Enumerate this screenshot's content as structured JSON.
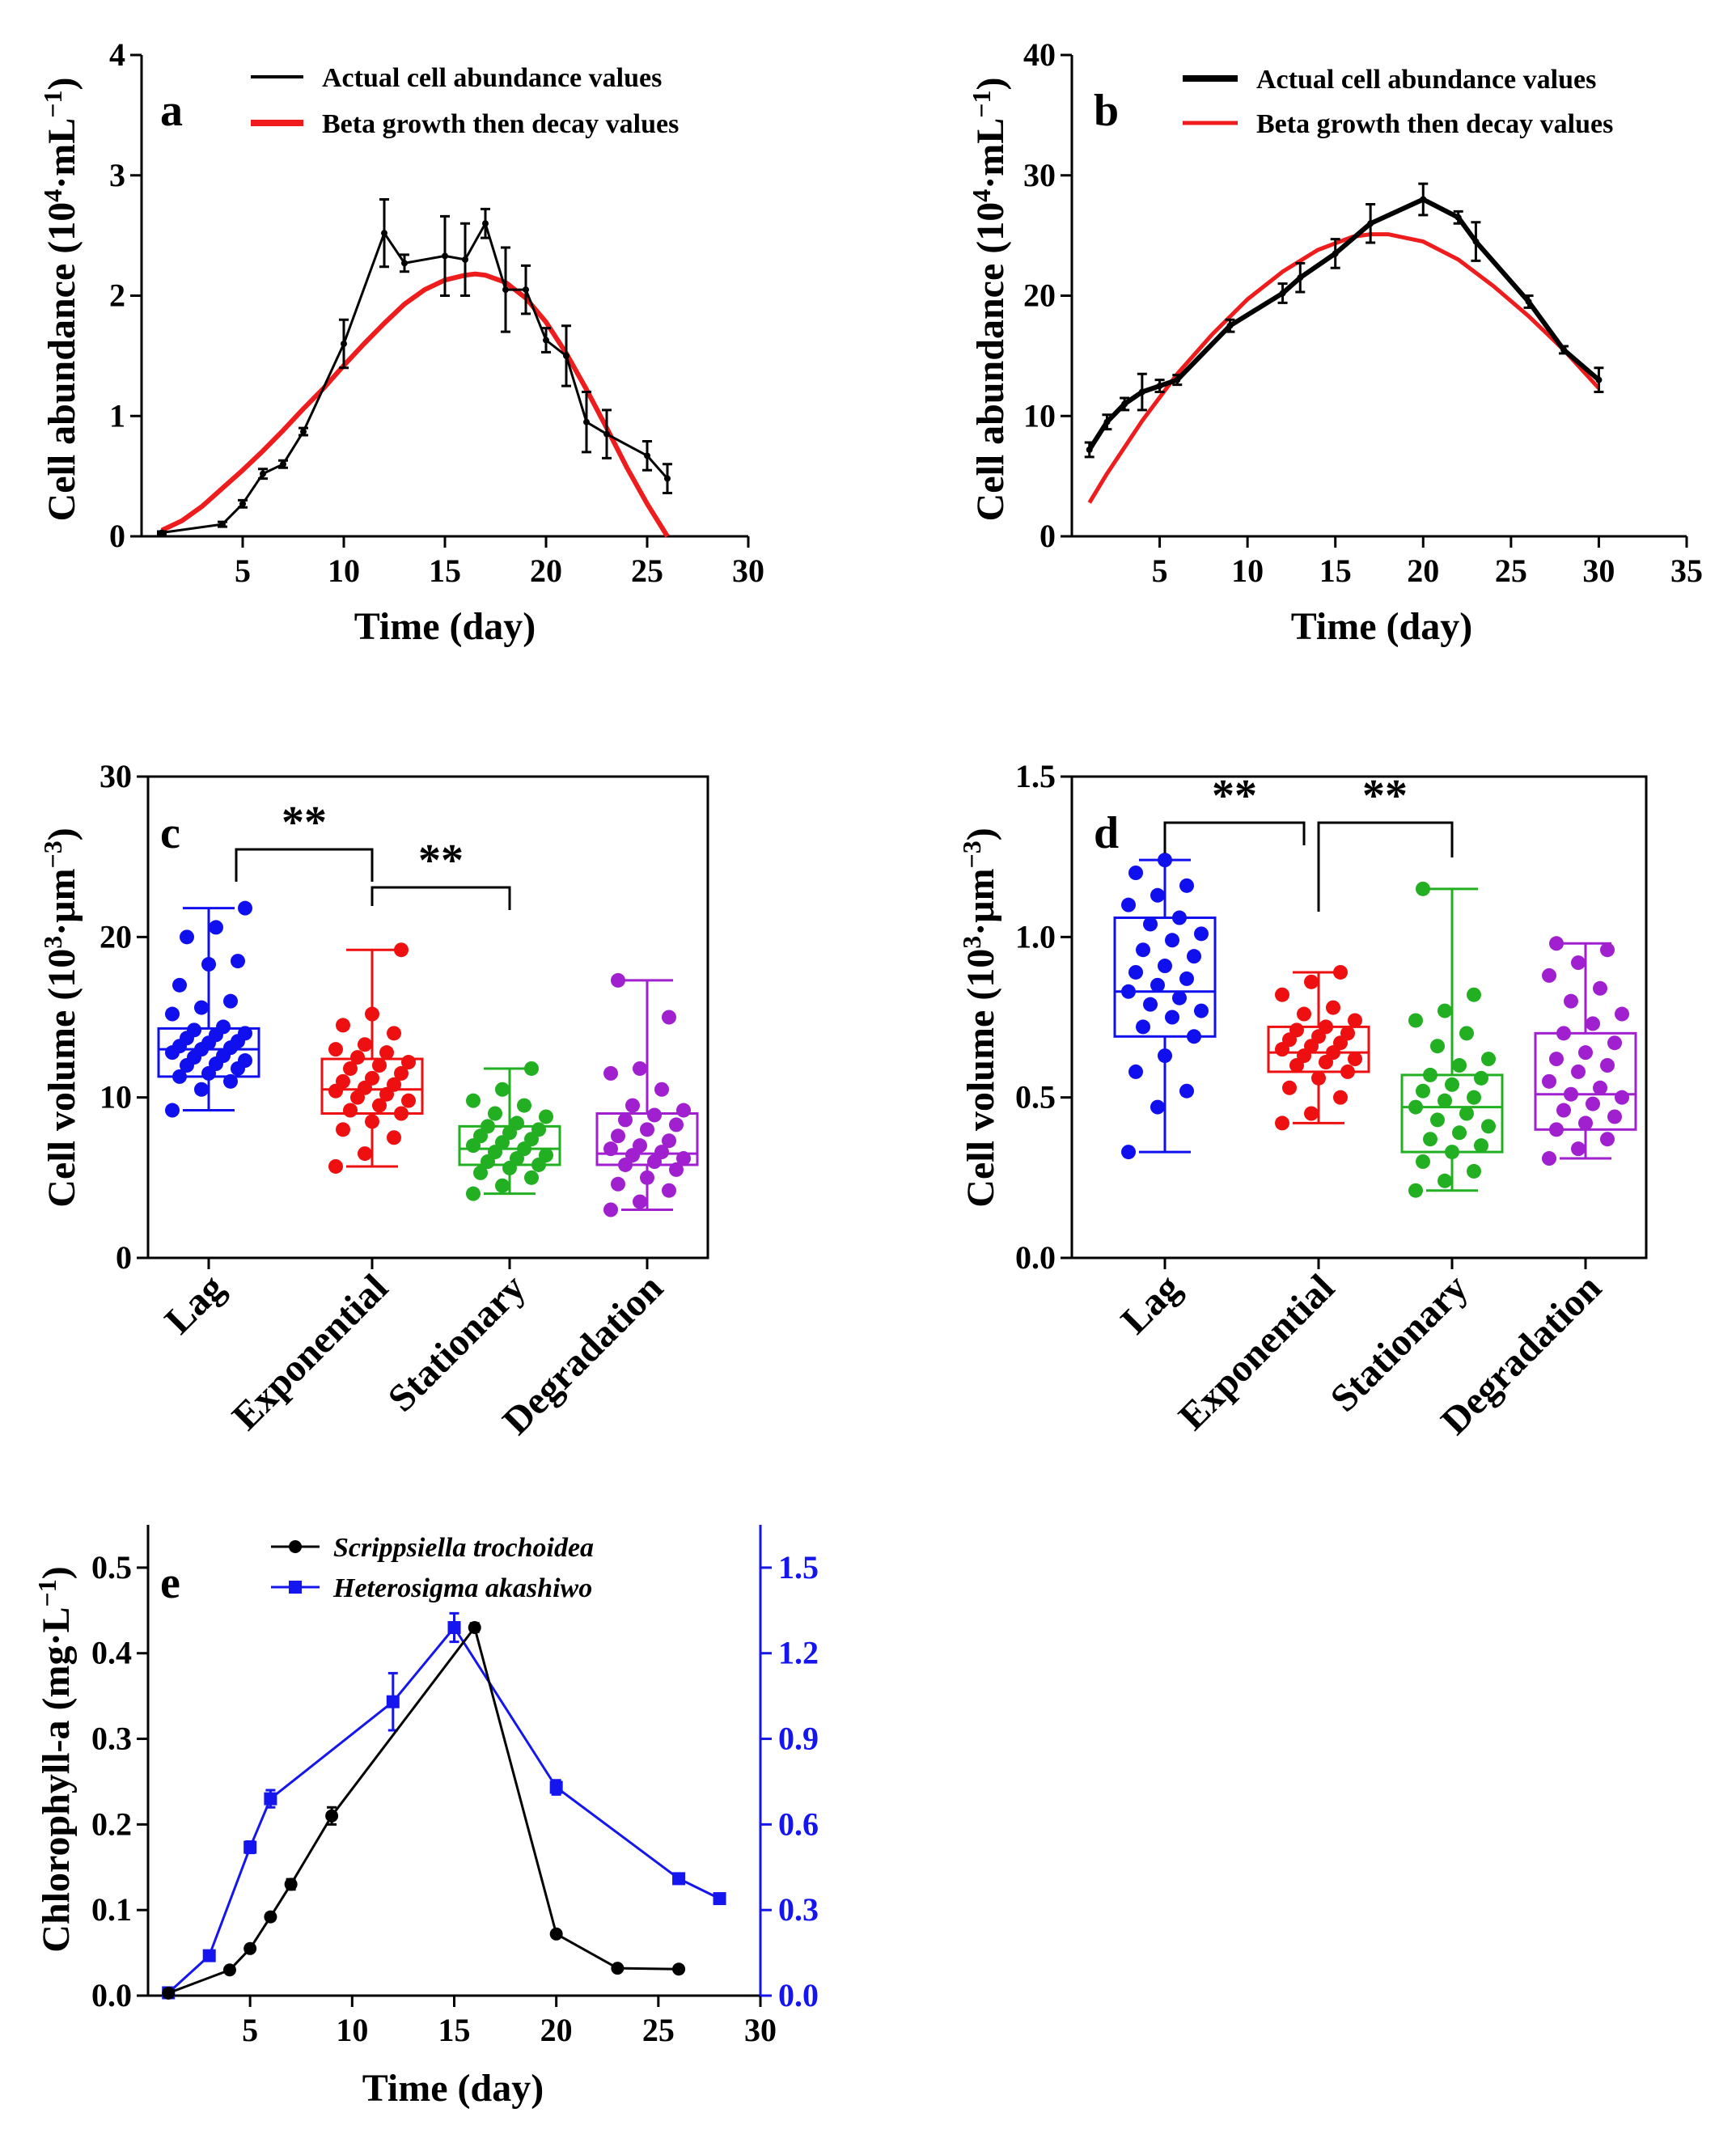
{
  "chart_data": [
    {
      "id": "a",
      "type": "line",
      "panel_letter": "a",
      "xlabel": "Time (day)",
      "ylabel_main": "Cell abundance (10",
      "ylabel_exp": "4",
      "ylabel_unit": "·mL",
      "ylabel_unit_exp": "−1",
      "ylabel_close": ")",
      "xlim": [
        0,
        30
      ],
      "ylim": [
        0,
        4
      ],
      "xticks": [
        5,
        10,
        15,
        20,
        25,
        30
      ],
      "yticks": [
        0,
        1,
        2,
        3,
        4
      ],
      "series": [
        {
          "name": "Actual cell abundance values",
          "color": "#000000",
          "x": [
            1,
            4,
            5,
            6,
            7,
            8,
            10,
            12,
            13,
            15,
            16,
            17,
            18,
            19,
            20,
            21,
            22,
            23,
            25,
            26
          ],
          "y": [
            0.03,
            0.1,
            0.27,
            0.52,
            0.6,
            0.87,
            1.6,
            2.52,
            2.27,
            2.33,
            2.3,
            2.6,
            2.05,
            2.05,
            1.63,
            1.5,
            0.95,
            0.85,
            0.67,
            0.48
          ],
          "err": [
            0.01,
            0.02,
            0.03,
            0.04,
            0.03,
            0.03,
            0.2,
            0.28,
            0.07,
            0.33,
            0.3,
            0.12,
            0.35,
            0.2,
            0.1,
            0.25,
            0.25,
            0.2,
            0.12,
            0.12
          ]
        },
        {
          "name": "Beta growth then decay values",
          "color": "#ee1c1c",
          "x": [
            1,
            2,
            3,
            4,
            5,
            6,
            7,
            8,
            9,
            10,
            11,
            12,
            13,
            14,
            15,
            16,
            16.5,
            17,
            18,
            19,
            20,
            21,
            22,
            23,
            24,
            25,
            26
          ],
          "y": [
            0.05,
            0.13,
            0.25,
            0.4,
            0.55,
            0.71,
            0.88,
            1.06,
            1.23,
            1.42,
            1.6,
            1.77,
            1.93,
            2.05,
            2.13,
            2.17,
            2.18,
            2.17,
            2.11,
            1.98,
            1.78,
            1.52,
            1.22,
            0.9,
            0.57,
            0.27,
            0.0
          ]
        }
      ]
    },
    {
      "id": "b",
      "type": "line",
      "panel_letter": "b",
      "xlabel": "Time (day)",
      "ylabel_main": "Cell abundance (10",
      "ylabel_exp": "4",
      "ylabel_unit": "·mL",
      "ylabel_unit_exp": "−1",
      "ylabel_close": ")",
      "xlim": [
        0,
        35
      ],
      "ylim": [
        0,
        40
      ],
      "xticks": [
        5,
        10,
        15,
        20,
        25,
        30,
        35
      ],
      "yticks": [
        0,
        10,
        20,
        30,
        40
      ],
      "series": [
        {
          "name": "Actual cell abundance values",
          "color": "#000000",
          "x": [
            1,
            2,
            3,
            4,
            5,
            6,
            9,
            12,
            13,
            15,
            17,
            20,
            22,
            23,
            26,
            28,
            30
          ],
          "y": [
            7.2,
            9.5,
            11.0,
            12.0,
            12.5,
            13.0,
            17.5,
            20.2,
            21.5,
            23.5,
            26.0,
            28.0,
            26.5,
            24.5,
            19.5,
            15.5,
            13.0
          ],
          "err": [
            0.6,
            0.6,
            0.5,
            1.5,
            0.5,
            0.4,
            0.5,
            0.8,
            1.2,
            1.2,
            1.6,
            1.3,
            0.5,
            1.6,
            0.5,
            0.3,
            1.0
          ]
        },
        {
          "name": "Beta growth then decay values",
          "color": "#ee1c1c",
          "x": [
            1,
            2,
            4,
            6,
            8,
            10,
            12,
            14,
            16,
            17,
            18,
            20,
            22,
            24,
            26,
            28,
            30
          ],
          "y": [
            2.8,
            5.2,
            9.6,
            13.5,
            16.8,
            19.7,
            22.0,
            23.8,
            24.9,
            25.1,
            25.1,
            24.5,
            23.0,
            20.8,
            18.3,
            15.5,
            12.3
          ]
        }
      ]
    },
    {
      "id": "c",
      "type": "box",
      "panel_letter": "c",
      "ylabel_main": "Cell volume (10",
      "ylabel_exp": "3",
      "ylabel_unit": "·μm",
      "ylabel_unit_exp": "−3",
      "ylabel_close": ")",
      "ylim": [
        0,
        30
      ],
      "yticks": [
        0,
        10,
        20,
        30
      ],
      "categories": [
        "Lag",
        "Exponential",
        "Stationary",
        "Degradation"
      ],
      "significance": [
        "**",
        "**"
      ],
      "boxes": [
        {
          "color": "#1010ee",
          "min": 9.2,
          "q1": 11.3,
          "median": 13.0,
          "q3": 14.3,
          "max": 21.8,
          "points": [
            9.2,
            10.5,
            11.0,
            11.3,
            11.5,
            11.8,
            12.0,
            12.1,
            12.3,
            12.5,
            12.6,
            12.8,
            13.0,
            13.1,
            13.2,
            13.4,
            13.5,
            13.7,
            13.9,
            14.0,
            14.2,
            14.4,
            15.2,
            15.6,
            16.0,
            17.0,
            18.3,
            18.5,
            20.0,
            20.6,
            21.8
          ]
        },
        {
          "color": "#ee1010",
          "min": 5.7,
          "q1": 9.0,
          "median": 10.5,
          "q3": 12.4,
          "max": 19.2,
          "points": [
            5.7,
            6.5,
            7.5,
            8.0,
            8.5,
            9.0,
            9.2,
            9.5,
            9.8,
            10.0,
            10.2,
            10.4,
            10.6,
            10.8,
            11.0,
            11.2,
            11.5,
            11.8,
            12.0,
            12.2,
            12.5,
            12.8,
            13.0,
            13.3,
            14.0,
            14.5,
            15.2,
            19.2
          ]
        },
        {
          "color": "#22b022",
          "min": 4.0,
          "q1": 5.8,
          "median": 6.8,
          "q3": 8.2,
          "max": 11.8,
          "points": [
            4.0,
            4.5,
            5.0,
            5.3,
            5.6,
            5.8,
            6.0,
            6.2,
            6.4,
            6.6,
            6.8,
            7.0,
            7.2,
            7.4,
            7.6,
            7.8,
            8.0,
            8.2,
            8.4,
            8.8,
            9.0,
            9.5,
            9.8,
            10.5,
            11.8
          ]
        },
        {
          "color": "#a020d0",
          "min": 3.0,
          "q1": 5.8,
          "median": 6.5,
          "q3": 9.0,
          "max": 17.3,
          "points": [
            3.0,
            3.5,
            4.2,
            4.6,
            5.0,
            5.5,
            5.8,
            6.0,
            6.2,
            6.4,
            6.6,
            6.8,
            7.0,
            7.3,
            7.6,
            8.0,
            8.3,
            8.6,
            8.9,
            9.2,
            9.5,
            10.5,
            11.5,
            11.8,
            15.0,
            17.3
          ]
        }
      ]
    },
    {
      "id": "d",
      "type": "box",
      "panel_letter": "d",
      "ylabel_main": "Cell volume (10",
      "ylabel_exp": "3",
      "ylabel_unit": "·μm",
      "ylabel_unit_exp": "−3",
      "ylabel_close": ")",
      "ylim": [
        0,
        1.5
      ],
      "yticks": [
        0.0,
        0.5,
        1.0,
        1.5
      ],
      "ytick_labels": [
        "0.0",
        "0.5",
        "1.0",
        "1.5"
      ],
      "categories": [
        "Lag",
        "Exponential",
        "Stationary",
        "Degradation"
      ],
      "significance": [
        "**",
        "**"
      ],
      "boxes": [
        {
          "color": "#1010ee",
          "min": 0.33,
          "q1": 0.69,
          "median": 0.83,
          "q3": 1.06,
          "max": 1.24,
          "points": [
            0.33,
            0.47,
            0.52,
            0.58,
            0.63,
            0.69,
            0.72,
            0.75,
            0.77,
            0.79,
            0.81,
            0.83,
            0.85,
            0.87,
            0.89,
            0.91,
            0.94,
            0.96,
            0.99,
            1.01,
            1.04,
            1.06,
            1.1,
            1.13,
            1.16,
            1.2,
            1.24
          ]
        },
        {
          "color": "#ee1010",
          "min": 0.42,
          "q1": 0.58,
          "median": 0.64,
          "q3": 0.72,
          "max": 0.89,
          "points": [
            0.42,
            0.45,
            0.5,
            0.53,
            0.56,
            0.58,
            0.6,
            0.61,
            0.62,
            0.63,
            0.64,
            0.65,
            0.66,
            0.67,
            0.68,
            0.69,
            0.7,
            0.71,
            0.72,
            0.74,
            0.76,
            0.78,
            0.82,
            0.86,
            0.89
          ]
        },
        {
          "color": "#22b022",
          "min": 0.21,
          "q1": 0.33,
          "median": 0.47,
          "q3": 0.57,
          "max": 1.15,
          "points": [
            0.21,
            0.24,
            0.27,
            0.3,
            0.33,
            0.35,
            0.37,
            0.39,
            0.41,
            0.43,
            0.45,
            0.47,
            0.49,
            0.5,
            0.52,
            0.54,
            0.56,
            0.57,
            0.6,
            0.62,
            0.66,
            0.7,
            0.74,
            0.77,
            0.82,
            1.15
          ]
        },
        {
          "color": "#a020d0",
          "min": 0.31,
          "q1": 0.4,
          "median": 0.51,
          "q3": 0.7,
          "max": 0.98,
          "points": [
            0.31,
            0.34,
            0.37,
            0.4,
            0.42,
            0.44,
            0.46,
            0.48,
            0.5,
            0.51,
            0.53,
            0.55,
            0.58,
            0.6,
            0.62,
            0.64,
            0.67,
            0.7,
            0.73,
            0.76,
            0.8,
            0.84,
            0.88,
            0.92,
            0.96,
            0.98
          ]
        }
      ]
    },
    {
      "id": "e",
      "type": "line",
      "panel_letter": "e",
      "xlabel": "Time (day)",
      "ylabel_main": "Chlorophyll-a (mg·L",
      "ylabel_unit_exp": "−1",
      "ylabel_close": ")",
      "xlim": [
        0,
        30
      ],
      "ylim": [
        0,
        0.55
      ],
      "y2lim": [
        0,
        1.65
      ],
      "xticks": [
        5,
        10,
        15,
        20,
        25,
        30
      ],
      "yticks": [
        0.0,
        0.1,
        0.2,
        0.3,
        0.4,
        0.5
      ],
      "ytick_labels": [
        "0.0",
        "0.1",
        "0.2",
        "0.3",
        "0.4",
        "0.5"
      ],
      "y2ticks": [
        0.0,
        0.3,
        0.6,
        0.9,
        1.2,
        1.5
      ],
      "y2tick_labels": [
        "0.0",
        "0.3",
        "0.6",
        "0.9",
        "1.2",
        "1.5"
      ],
      "series": [
        {
          "name": "Scrippsiella trochoidea",
          "color": "#000000",
          "axis": "left",
          "marker": "circle",
          "x": [
            1,
            4,
            5,
            6,
            7,
            9,
            16,
            20,
            23,
            26
          ],
          "y": [
            0.003,
            0.03,
            0.055,
            0.092,
            0.13,
            0.21,
            0.43,
            0.072,
            0.032,
            0.031
          ],
          "err": [
            0.001,
            0.002,
            0.003,
            0.004,
            0.006,
            0.01,
            0.005,
            0.003,
            0.002,
            0.002
          ]
        },
        {
          "name": "Heterosigma akashiwo",
          "color": "#1515ee",
          "axis": "right",
          "marker": "square",
          "x": [
            1,
            3,
            5,
            6,
            12,
            15,
            20,
            26,
            28
          ],
          "y": [
            0.01,
            0.14,
            0.52,
            0.69,
            1.03,
            1.29,
            0.73,
            0.41,
            0.34
          ],
          "err": [
            0.005,
            0.01,
            0.02,
            0.03,
            0.1,
            0.05,
            0.025,
            0.01,
            0.01
          ]
        }
      ]
    }
  ]
}
